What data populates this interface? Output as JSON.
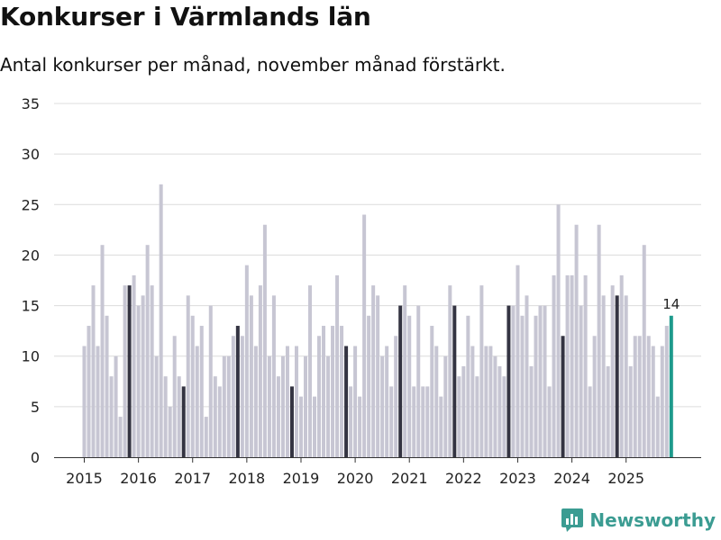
{
  "title": "Konkurser i Värmlands län",
  "subtitle": "Antal konkurser per månad, november månad förstärkt.",
  "logo": {
    "text": "Newsworthy",
    "icon": "newsworthy-logo-icon"
  },
  "colors": {
    "regular": "#c7c6d3",
    "november": "#343442",
    "latest": "#1e9a8c",
    "grid": "#dcdcdc",
    "axis": "#333333"
  },
  "chart_data": {
    "type": "bar",
    "title": "Konkurser i Värmlands län",
    "subtitle": "Antal konkurser per månad, november månad förstärkt.",
    "xlabel": "",
    "ylabel": "",
    "ylim": [
      0,
      35
    ],
    "yticks": [
      0,
      5,
      10,
      15,
      20,
      25,
      30,
      35
    ],
    "grid": true,
    "xticks": [
      "2015",
      "2016",
      "2017",
      "2018",
      "2019",
      "2020",
      "2021",
      "2022",
      "2023",
      "2024",
      "2025"
    ],
    "start": "2015-01",
    "highlight_month": 11,
    "latest_label": "14",
    "values": [
      11,
      13,
      17,
      11,
      21,
      14,
      8,
      10,
      4,
      17,
      17,
      18,
      15,
      16,
      21,
      17,
      10,
      27,
      8,
      5,
      12,
      8,
      7,
      16,
      14,
      11,
      13,
      4,
      15,
      8,
      7,
      10,
      10,
      12,
      13,
      12,
      19,
      16,
      11,
      17,
      23,
      10,
      16,
      8,
      10,
      11,
      7,
      11,
      6,
      10,
      17,
      6,
      12,
      13,
      10,
      13,
      18,
      13,
      11,
      7,
      11,
      6,
      24,
      14,
      17,
      16,
      10,
      11,
      7,
      12,
      15,
      17,
      14,
      7,
      15,
      7,
      7,
      13,
      11,
      6,
      10,
      17,
      15,
      8,
      9,
      14,
      11,
      8,
      17,
      11,
      11,
      10,
      9,
      8,
      15,
      15,
      19,
      14,
      16,
      9,
      14,
      15,
      15,
      7,
      18,
      25,
      12,
      18,
      18,
      23,
      15,
      18,
      7,
      12,
      23,
      16,
      9,
      17,
      16,
      18,
      16,
      9,
      12,
      12,
      21,
      12,
      11,
      6,
      11,
      13,
      14
    ]
  }
}
